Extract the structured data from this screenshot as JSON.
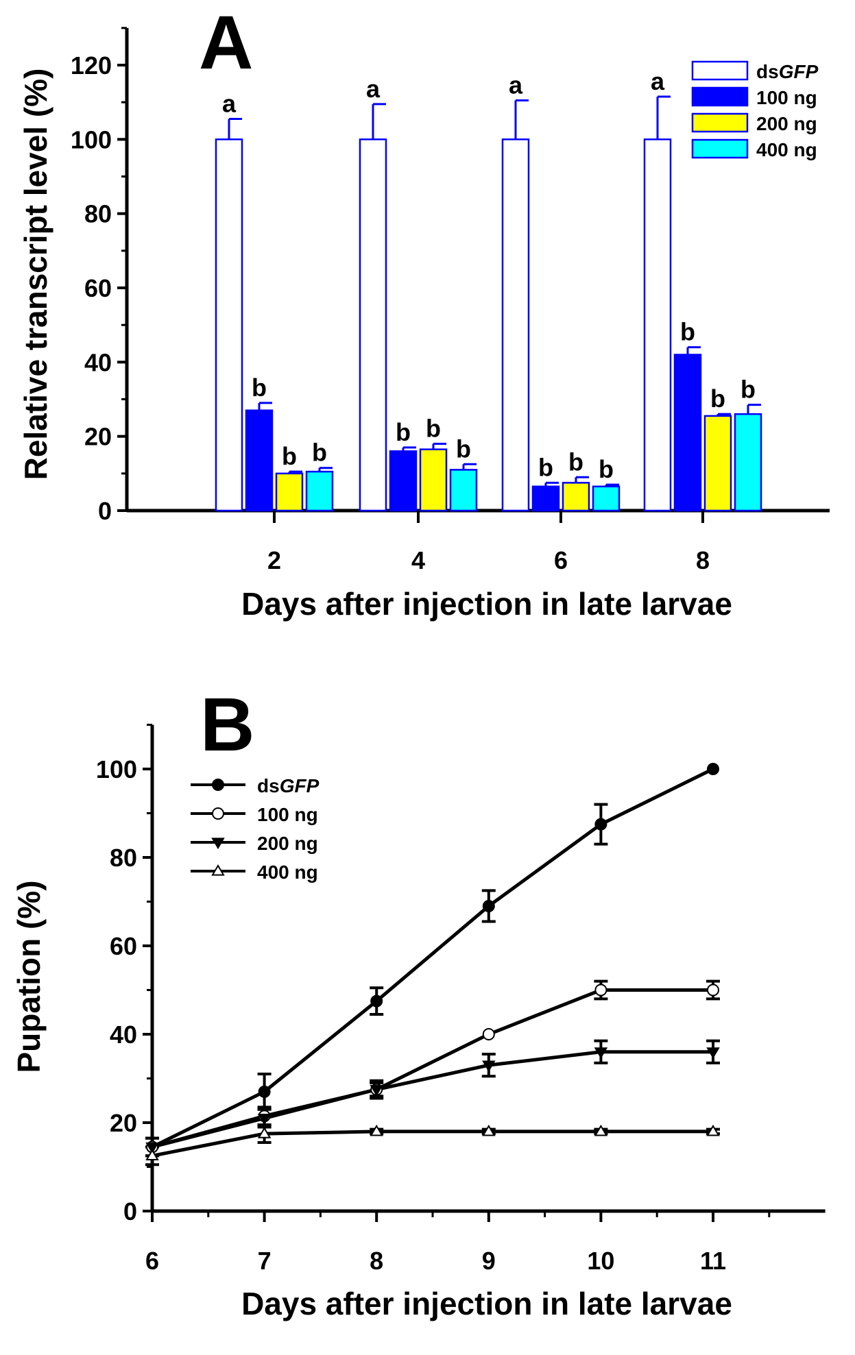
{
  "colors": {
    "dsGFP_fill": "#ffffff",
    "dsGFP_edge": "#0000ff",
    "dose100": "#0000ff",
    "dose200": "#ffff00",
    "dose400": "#00ffff",
    "axis": "#000000"
  },
  "legend_prefix": "ds",
  "chart_data": [
    {
      "panel": "A",
      "type": "bar",
      "xlabel": "Days after injection in late larvae",
      "ylabel": "Relative transcript level (%)",
      "ylim": [
        0,
        130
      ],
      "yticks": [
        0,
        20,
        40,
        60,
        80,
        100,
        120
      ],
      "categories": [
        "2",
        "4",
        "6",
        "8"
      ],
      "series": [
        {
          "name": "GFP",
          "legend_prefix": "ds",
          "color_key": "dsGFP_fill",
          "values": [
            100,
            100,
            100,
            100
          ],
          "errors": [
            5.5,
            9.5,
            10.5,
            11.5
          ],
          "labels": [
            "a",
            "a",
            "a",
            "a"
          ]
        },
        {
          "name": "100 ng",
          "color_key": "dose100",
          "values": [
            27,
            16,
            6.5,
            42
          ],
          "errors": [
            2,
            1,
            1,
            2
          ],
          "labels": [
            "b",
            "b",
            "b",
            "b"
          ]
        },
        {
          "name": "200 ng",
          "color_key": "dose200",
          "values": [
            10,
            16.5,
            7.5,
            25.5
          ],
          "errors": [
            0.5,
            1.5,
            1.5,
            0.5
          ],
          "labels": [
            "b",
            "b",
            "b",
            "b"
          ]
        },
        {
          "name": "400 ng",
          "color_key": "dose400",
          "values": [
            10.5,
            11,
            6.5,
            26
          ],
          "errors": [
            1,
            1.5,
            0.5,
            2.5
          ],
          "labels": [
            "b",
            "b",
            "b",
            "b"
          ]
        }
      ],
      "legend_position": "top-right"
    },
    {
      "panel": "B",
      "type": "line",
      "xlabel": "Days after injection in late larvae",
      "ylabel": "Pupation (%)",
      "x": [
        6,
        7,
        8,
        9,
        10,
        11
      ],
      "xlim": [
        6,
        12
      ],
      "xticks": [
        6,
        7,
        8,
        9,
        10,
        11
      ],
      "ylim": [
        0,
        110
      ],
      "yticks": [
        0,
        20,
        40,
        60,
        80,
        100
      ],
      "series": [
        {
          "name": "GFP",
          "legend_prefix": "ds",
          "marker": "filled-circle",
          "values": [
            14.5,
            27,
            47.5,
            69,
            87.5,
            100
          ],
          "errors": [
            2,
            4,
            3,
            3.5,
            4.5,
            0
          ]
        },
        {
          "name": "100 ng",
          "marker": "open-circle",
          "values": [
            14.5,
            21.5,
            27.5,
            40,
            50,
            50
          ],
          "errors": [
            2,
            2,
            1.5,
            0,
            2,
            2
          ]
        },
        {
          "name": "200 ng",
          "marker": "filled-triangle-down",
          "values": [
            14.5,
            21,
            27.5,
            33,
            36,
            36
          ],
          "errors": [
            2,
            2,
            2,
            2.5,
            2.5,
            2.5
          ]
        },
        {
          "name": "400 ng",
          "marker": "open-triangle-up",
          "values": [
            12.5,
            17.5,
            18,
            18,
            18,
            18
          ],
          "errors": [
            2,
            2,
            0.5,
            0.5,
            0.5,
            0.5
          ]
        }
      ],
      "legend_position": "top-left"
    }
  ]
}
